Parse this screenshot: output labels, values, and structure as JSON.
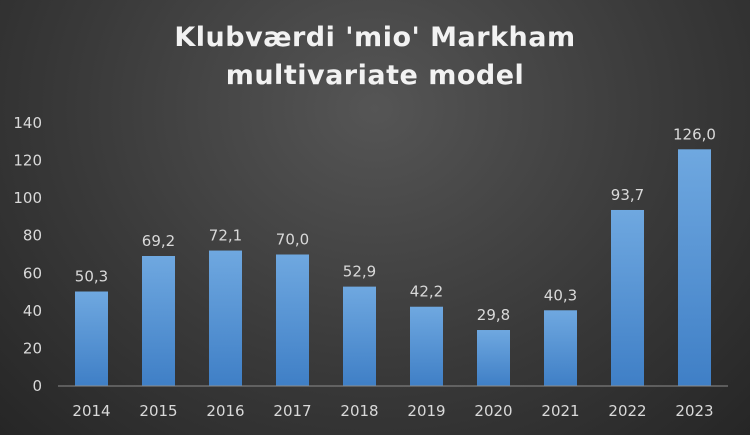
{
  "chart_data": {
    "type": "bar",
    "title_lines": [
      "Klubværdi 'mio' Markham",
      "multivariate model"
    ],
    "categories": [
      "2014",
      "2015",
      "2016",
      "2017",
      "2018",
      "2019",
      "2020",
      "2021",
      "2022",
      "2023"
    ],
    "values": [
      50.3,
      69.2,
      72.1,
      70.0,
      52.9,
      42.2,
      29.8,
      40.3,
      93.7,
      126.0
    ],
    "data_labels": [
      "50,3",
      "69,2",
      "72,1",
      "70,0",
      "52,9",
      "42,2",
      "29,8",
      "40,3",
      "93,7",
      "126,0"
    ],
    "ylim": [
      0,
      140
    ],
    "yticks": [
      "0",
      "20",
      "40",
      "60",
      "80",
      "100",
      "120",
      "140"
    ],
    "grid": false,
    "colors": {
      "bar_top": "#6fa8e0",
      "bar_bottom": "#3f7fc6",
      "axis": "#8c8c8c",
      "text": "#d9d9d9",
      "title": "#f2f2f2"
    }
  }
}
